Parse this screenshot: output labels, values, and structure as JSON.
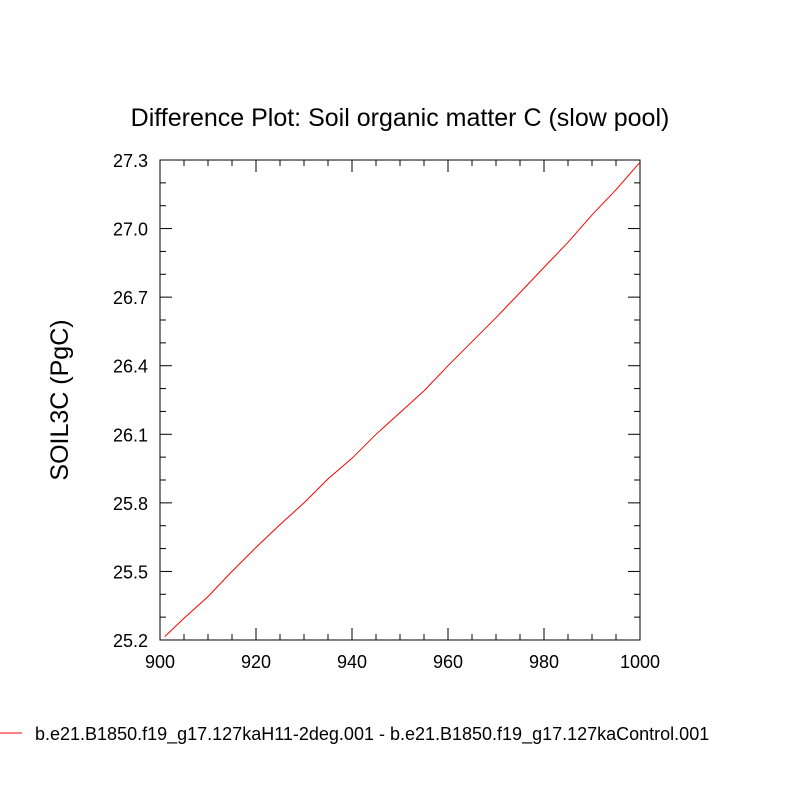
{
  "chart_data": {
    "type": "line",
    "title": "Difference Plot: Soil organic matter C (slow pool)",
    "xlabel": "",
    "ylabel": "SOIL3C  (PgC)",
    "xlim": [
      900,
      1000
    ],
    "ylim": [
      25.2,
      27.3
    ],
    "xticks": [
      900,
      920,
      940,
      960,
      980,
      1000
    ],
    "xtick_labels": [
      "900",
      "920",
      "940",
      "960",
      "980",
      "1000"
    ],
    "yticks": [
      25.2,
      25.5,
      25.8,
      26.1,
      26.4,
      26.7,
      27.0,
      27.3
    ],
    "ytick_labels": [
      "25.2",
      "25.5",
      "25.8",
      "26.1",
      "26.4",
      "26.7",
      "27.0",
      "27.3"
    ],
    "grid": false,
    "legend_position": "bottom",
    "series": [
      {
        "name": "b.e21.B1850.f19_g17.127kaH11-2deg.001 - b.e21.B1850.f19_g17.127kaControl.001",
        "color": "#ff0000",
        "x": [
          901,
          905,
          910,
          915,
          920,
          925,
          930,
          935,
          940,
          945,
          950,
          955,
          960,
          965,
          970,
          975,
          980,
          985,
          990,
          995,
          1000
        ],
        "values": [
          25.215,
          25.295,
          25.39,
          25.5,
          25.605,
          25.705,
          25.8,
          25.905,
          25.995,
          26.1,
          26.195,
          26.29,
          26.4,
          26.505,
          26.61,
          26.72,
          26.83,
          26.94,
          27.06,
          27.17,
          27.29
        ]
      }
    ]
  }
}
